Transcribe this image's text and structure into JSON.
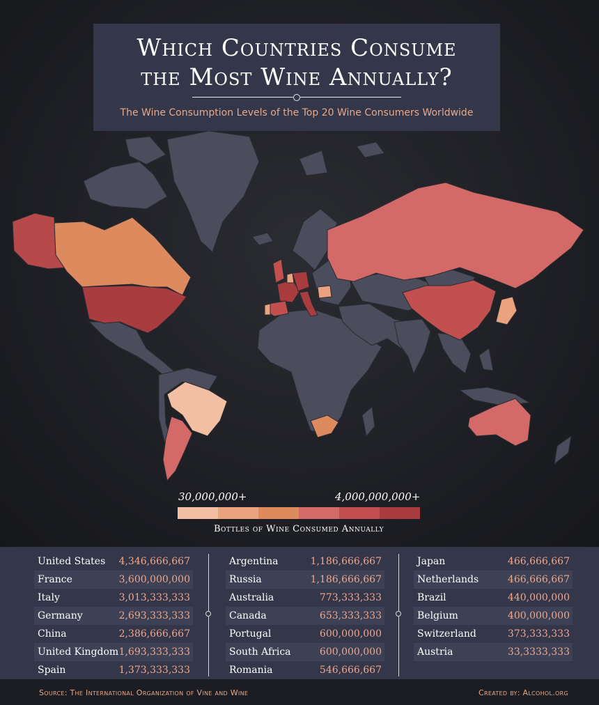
{
  "header": {
    "title_line1": "Which Countries Consume",
    "title_line2": "the Most Wine Annually?",
    "subtitle": "The Wine Consumption Levels of the Top 20 Wine Consumers Worldwide"
  },
  "legend": {
    "min_label": "30,000,000+",
    "max_label": "4,000,000,000+",
    "caption": "Bottles of Wine Consumed Annually",
    "colors": [
      "#f2bfa3",
      "#eaa37e",
      "#dd8a5e",
      "#d46a68",
      "#c2504f",
      "#a83c3f"
    ]
  },
  "colors": {
    "background": "#1e1f24",
    "land_default": "#4b4c5c",
    "panel": "#34374a",
    "accent": "#e6a889"
  },
  "table": {
    "columns": [
      [
        {
          "country": "United States",
          "value": "4,346,666,667"
        },
        {
          "country": "France",
          "value": "3,600,000,000"
        },
        {
          "country": "Italy",
          "value": "3,013,333,333"
        },
        {
          "country": "Germany",
          "value": "2,693,333,333"
        },
        {
          "country": "China",
          "value": "2,386,666,667"
        },
        {
          "country": "United Kingdom",
          "value": "1,693,333,333"
        },
        {
          "country": "Spain",
          "value": "1,373,333,333"
        }
      ],
      [
        {
          "country": "Argentina",
          "value": "1,186,666,667"
        },
        {
          "country": "Russia",
          "value": "1,186,666,667"
        },
        {
          "country": "Australia",
          "value": "773,333,333"
        },
        {
          "country": "Canada",
          "value": "653,333,333"
        },
        {
          "country": "Portugal",
          "value": "600,000,000"
        },
        {
          "country": "South Africa",
          "value": "600,000,000"
        },
        {
          "country": "Romania",
          "value": "546,666,667"
        }
      ],
      [
        {
          "country": "Japan",
          "value": "466,666,667"
        },
        {
          "country": "Netherlands",
          "value": "466,666,667"
        },
        {
          "country": "Brazil",
          "value": "440,000,000"
        },
        {
          "country": "Belgium",
          "value": "400,000,000"
        },
        {
          "country": "Switzerland",
          "value": "373,333,333"
        },
        {
          "country": "Austria",
          "value": "33,3333,333"
        }
      ]
    ]
  },
  "map": {
    "highlighted": [
      {
        "name": "United States",
        "tier": 5
      },
      {
        "name": "France",
        "tier": 5
      },
      {
        "name": "Italy",
        "tier": 5
      },
      {
        "name": "Germany",
        "tier": 5
      },
      {
        "name": "China",
        "tier": 4
      },
      {
        "name": "United Kingdom",
        "tier": 4
      },
      {
        "name": "Spain",
        "tier": 4
      },
      {
        "name": "Argentina",
        "tier": 3
      },
      {
        "name": "Russia",
        "tier": 3
      },
      {
        "name": "Australia",
        "tier": 3
      },
      {
        "name": "Canada",
        "tier": 2
      },
      {
        "name": "Portugal",
        "tier": 2
      },
      {
        "name": "South Africa",
        "tier": 2
      },
      {
        "name": "Romania",
        "tier": 2
      },
      {
        "name": "Japan",
        "tier": 1
      },
      {
        "name": "Netherlands",
        "tier": 1
      },
      {
        "name": "Brazil",
        "tier": 0
      },
      {
        "name": "Belgium",
        "tier": 1
      },
      {
        "name": "Switzerland",
        "tier": 1
      },
      {
        "name": "Austria",
        "tier": 1
      },
      {
        "name": "Alaska",
        "tier": 5
      }
    ]
  },
  "footer": {
    "source": "Source: The International Organization of Vine and Wine",
    "credit": "Created by: Alcohol.org"
  }
}
